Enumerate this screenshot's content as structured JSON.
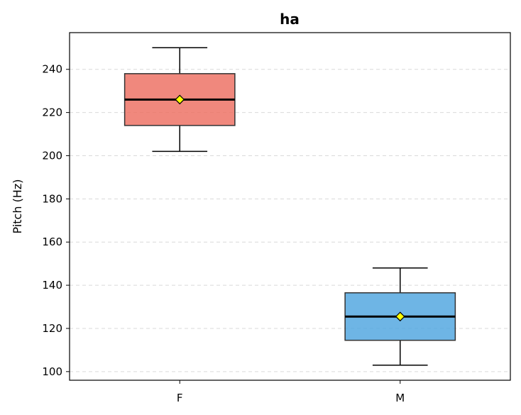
{
  "chart_data": {
    "type": "box",
    "title": "ha",
    "xlabel": "",
    "ylabel": "Pitch (Hz)",
    "ylim": [
      96,
      257
    ],
    "yticks": [
      100,
      120,
      140,
      160,
      180,
      200,
      220,
      240
    ],
    "grid": "y-dashed",
    "categories": [
      "F",
      "M"
    ],
    "boxes": [
      {
        "category": "F",
        "whisker_low": 202,
        "q1": 214,
        "median": 226,
        "mean": 226,
        "q3": 238,
        "whisker_high": 250,
        "color": "#ec6a5c"
      },
      {
        "category": "M",
        "whisker_low": 103,
        "q1": 114.5,
        "median": 125.5,
        "mean": 125.5,
        "q3": 136.5,
        "whisker_high": 148,
        "color": "#4aa3de"
      }
    ],
    "mean_marker_color": "#ffff00"
  }
}
